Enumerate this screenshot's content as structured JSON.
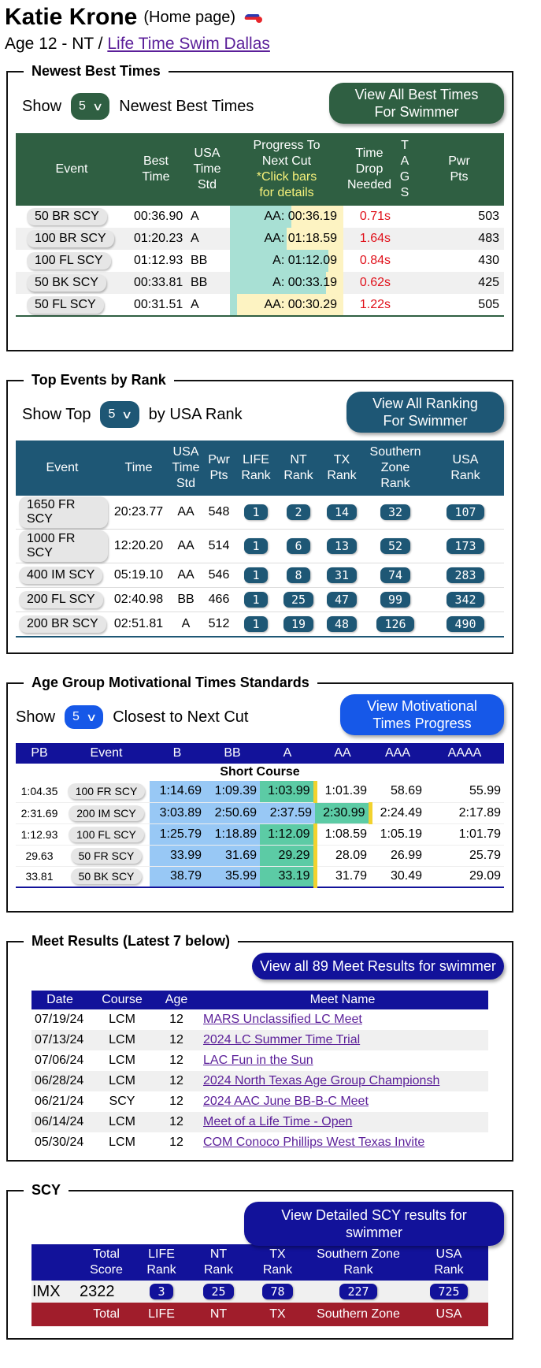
{
  "header": {
    "name": "Katie Krone",
    "home_label": "(Home page)",
    "age_prefix": "Age 12 - NT / ",
    "club_link": "Life Time Swim Dallas"
  },
  "best_times": {
    "legend": "Newest Best Times",
    "show_label": "Show",
    "select_value": "5",
    "suffix_label": "Newest Best Times",
    "view_all_line1": "View All Best Times",
    "view_all_line2": "For Swimmer",
    "headers": {
      "event": "Event",
      "best_time_1": "Best",
      "best_time_2": "Time",
      "usa_1": "USA",
      "usa_2": "Time",
      "usa_3": "Std",
      "progress_1": "Progress To",
      "progress_2": "Next Cut",
      "progress_3": "*Click bars",
      "progress_4": "for details",
      "drop_1": "Time",
      "drop_2": "Drop",
      "drop_3": "Needed",
      "tags_1": "T",
      "tags_2": "A",
      "tags_3": "G",
      "tags_4": "S",
      "pwr_1": "Pwr",
      "pwr_2": "Pts"
    },
    "rows": [
      {
        "event": "50 BR SCY",
        "time": "00:36.90",
        "std": "A",
        "progress": "AA: 00:36.19",
        "pct": 0.54,
        "drop": "0.71s",
        "pts": "503"
      },
      {
        "event": "100 BR SCY",
        "time": "01:20.23",
        "std": "A",
        "progress": "AA: 01:18.59",
        "pct": 0.5,
        "drop": "1.64s",
        "pts": "483"
      },
      {
        "event": "100 FL SCY",
        "time": "01:12.93",
        "std": "BB",
        "progress": "A: 01:12.09",
        "pct": 0.87,
        "drop": "0.84s",
        "pts": "430"
      },
      {
        "event": "50 BK SCY",
        "time": "00:33.81",
        "std": "BB",
        "progress": "A: 00:33.19",
        "pct": 0.85,
        "drop": "0.62s",
        "pts": "425"
      },
      {
        "event": "50 FL SCY",
        "time": "00:31.51",
        "std": "A",
        "progress": "AA: 00:30.29",
        "pct": 0.06,
        "drop": "1.22s",
        "pts": "505"
      }
    ]
  },
  "top_events": {
    "legend": "Top Events by Rank",
    "show_label": "Show Top",
    "select_value": "5",
    "suffix_label": "by USA Rank",
    "view_all_line1": "View All Ranking",
    "view_all_line2": "For Swimmer",
    "headers": {
      "event": "Event",
      "time": "Time",
      "usa_1": "USA",
      "usa_2": "Time",
      "usa_3": "Std",
      "pwr_1": "Pwr",
      "pwr_2": "Pts",
      "life_1": "LIFE",
      "life_2": "Rank",
      "nt_1": "NT",
      "nt_2": "Rank",
      "tx_1": "TX",
      "tx_2": "Rank",
      "sz_1": "Southern",
      "sz_2": "Zone",
      "sz_3": "Rank",
      "usa_rank_1": "USA",
      "usa_rank_2": "Rank"
    },
    "rows": [
      {
        "event": "1650 FR SCY",
        "time": "20:23.77",
        "std": "AA",
        "pts": "548",
        "life": "1",
        "nt": "2",
        "tx": "14",
        "sz": "32",
        "usa": "107"
      },
      {
        "event": "1000 FR SCY",
        "time": "12:20.20",
        "std": "AA",
        "pts": "514",
        "life": "1",
        "nt": "6",
        "tx": "13",
        "sz": "52",
        "usa": "173"
      },
      {
        "event": "400 IM SCY",
        "time": "05:19.10",
        "std": "AA",
        "pts": "546",
        "life": "1",
        "nt": "8",
        "tx": "31",
        "sz": "74",
        "usa": "283"
      },
      {
        "event": "200 FL SCY",
        "time": "02:40.98",
        "std": "BB",
        "pts": "466",
        "life": "1",
        "nt": "25",
        "tx": "47",
        "sz": "99",
        "usa": "342"
      },
      {
        "event": "200 BR SCY",
        "time": "02:51.81",
        "std": "A",
        "pts": "512",
        "life": "1",
        "nt": "19",
        "tx": "48",
        "sz": "126",
        "usa": "490"
      }
    ]
  },
  "motivational": {
    "legend": "Age Group Motivational Times Standards",
    "show_label": "Show",
    "select_value": "5",
    "suffix_label": "Closest to Next Cut",
    "view_line1": "View Motivational",
    "view_line2": "Times Progress",
    "headers": [
      "PB",
      "Event",
      "B",
      "BB",
      "A",
      "AA",
      "AAA",
      "AAAA"
    ],
    "course_label": "Short Course",
    "rows": [
      {
        "pb": "1:04.35",
        "event": "100 FR SCY",
        "b": "1:14.69",
        "bb": "1:09.39",
        "a": "1:03.99",
        "aa": "1:01.39",
        "aaa": "58.69",
        "aaaa": "55.99",
        "achieved": 2
      },
      {
        "pb": "2:31.69",
        "event": "200 IM SCY",
        "b": "3:03.89",
        "bb": "2:50.69",
        "a": "2:37.59",
        "aa": "2:30.99",
        "aaa": "2:24.49",
        "aaaa": "2:17.89",
        "achieved": 3
      },
      {
        "pb": "1:12.93",
        "event": "100 FL SCY",
        "b": "1:25.79",
        "bb": "1:18.89",
        "a": "1:12.09",
        "aa": "1:08.59",
        "aaa": "1:05.19",
        "aaaa": "1:01.79",
        "achieved": 2
      },
      {
        "pb": "29.63",
        "event": "50 FR SCY",
        "b": "33.99",
        "bb": "31.69",
        "a": "29.29",
        "aa": "28.09",
        "aaa": "26.99",
        "aaaa": "25.79",
        "achieved": 2
      },
      {
        "pb": "33.81",
        "event": "50 BK SCY",
        "b": "38.79",
        "bb": "35.99",
        "a": "33.19",
        "aa": "31.79",
        "aaa": "30.49",
        "aaaa": "29.09",
        "achieved": 2
      }
    ]
  },
  "meets": {
    "legend": "Meet Results (Latest 7 below)",
    "view_all": "View all 89 Meet Results for swimmer",
    "headers": [
      "Date",
      "Course",
      "Age",
      "Meet Name"
    ],
    "rows": [
      {
        "date": "07/19/24",
        "course": "LCM",
        "age": "12",
        "name": "MARS Unclassified LC Meet"
      },
      {
        "date": "07/13/24",
        "course": "LCM",
        "age": "12",
        "name": "2024 LC Summer Time Trial"
      },
      {
        "date": "07/06/24",
        "course": "LCM",
        "age": "12",
        "name": "LAC Fun in the Sun"
      },
      {
        "date": "06/28/24",
        "course": "LCM",
        "age": "12",
        "name": "2024 North Texas Age Group Championsh"
      },
      {
        "date": "06/21/24",
        "course": "SCY",
        "age": "12",
        "name": "2024 AAC June BB-B-C Meet"
      },
      {
        "date": "06/14/24",
        "course": "LCM",
        "age": "12",
        "name": "Meet of a Life Time - Open"
      },
      {
        "date": "05/30/24",
        "course": "LCM",
        "age": "12",
        "name": "COM Conoco Phillips West Texas Invite"
      }
    ]
  },
  "scy": {
    "legend": "SCY",
    "view_detail": "View Detailed SCY results for swimmer",
    "headers": {
      "total_1": "Total",
      "total_2": "Score",
      "life_1": "LIFE",
      "life_2": "Rank",
      "nt_1": "NT",
      "nt_2": "Rank",
      "tx_1": "TX",
      "tx_2": "Rank",
      "sz_1": "Southern Zone",
      "sz_2": "Rank",
      "usa_1": "USA",
      "usa_2": "Rank"
    },
    "imx": {
      "label": "IMX",
      "score": "2322",
      "life": "3",
      "nt": "25",
      "tx": "78",
      "sz": "227",
      "usa": "725"
    },
    "second_headers": {
      "total": "Total",
      "life": "LIFE",
      "nt": "NT",
      "tx": "TX",
      "sz": "Southern Zone",
      "usa": "USA"
    }
  }
}
